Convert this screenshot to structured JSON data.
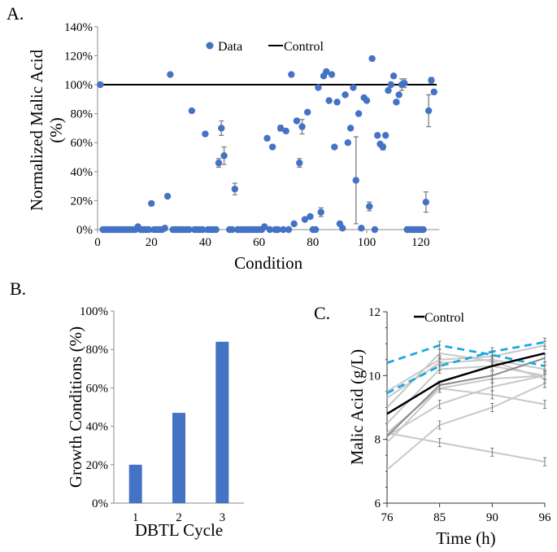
{
  "chart_data": [
    {
      "panel_label": "A.",
      "type": "scatter",
      "xlabel": "Condition",
      "ylabel": [
        "Normalized Malic Acid",
        "(%)"
      ],
      "xlim": [
        0,
        130
      ],
      "ylim": [
        0,
        140
      ],
      "xticks": [
        0,
        20,
        40,
        60,
        80,
        100,
        120
      ],
      "yticks": [
        0,
        20,
        40,
        60,
        80,
        100,
        120,
        140
      ],
      "ytick_suffix": "%",
      "legend": {
        "placement": "top-center",
        "entries": [
          "Data",
          "Control"
        ]
      },
      "colors": {
        "data": "#4472C4",
        "control": "#000000",
        "error": "#7f7f7f"
      },
      "control_value": 100,
      "series": [
        {
          "name": "Data",
          "points": [
            [
              1,
              100
            ],
            [
              2,
              0
            ],
            [
              3,
              0
            ],
            [
              4,
              0
            ],
            [
              5,
              0
            ],
            [
              6,
              0
            ],
            [
              7,
              0
            ],
            [
              8,
              0
            ],
            [
              9,
              0
            ],
            [
              10,
              0
            ],
            [
              11,
              0
            ],
            [
              12,
              0
            ],
            [
              13,
              0
            ],
            [
              14,
              0
            ],
            [
              15,
              2
            ],
            [
              16,
              0
            ],
            [
              17,
              0
            ],
            [
              18,
              0
            ],
            [
              19,
              0
            ],
            [
              20,
              18
            ],
            [
              21,
              0
            ],
            [
              22,
              0
            ],
            [
              23,
              0
            ],
            [
              24,
              0
            ],
            [
              25,
              1
            ],
            [
              26,
              23
            ],
            [
              27,
              107
            ],
            [
              28,
              0
            ],
            [
              29,
              0
            ],
            [
              30,
              0
            ],
            [
              31,
              0
            ],
            [
              32,
              0
            ],
            [
              33,
              0
            ],
            [
              34,
              0
            ],
            [
              35,
              82
            ],
            [
              36,
              0
            ],
            [
              37,
              0
            ],
            [
              38,
              0
            ],
            [
              39,
              0
            ],
            [
              40,
              66
            ],
            [
              41,
              0
            ],
            [
              42,
              0
            ],
            [
              43,
              0
            ],
            [
              44,
              0
            ],
            [
              45,
              46
            ],
            [
              46,
              70
            ],
            [
              47,
              51
            ],
            [
              49,
              0
            ],
            [
              50,
              0
            ],
            [
              51,
              28
            ],
            [
              52,
              0
            ],
            [
              53,
              0
            ],
            [
              54,
              0
            ],
            [
              55,
              0
            ],
            [
              56,
              0
            ],
            [
              57,
              0
            ],
            [
              58,
              0
            ],
            [
              59,
              0
            ],
            [
              60,
              0
            ],
            [
              61,
              0
            ],
            [
              62,
              2
            ],
            [
              63,
              63
            ],
            [
              64,
              0
            ],
            [
              65,
              57
            ],
            [
              66,
              0
            ],
            [
              67,
              0
            ],
            [
              68,
              70
            ],
            [
              69,
              0
            ],
            [
              70,
              68
            ],
            [
              71,
              0
            ],
            [
              72,
              107
            ],
            [
              73,
              4
            ],
            [
              74,
              75
            ],
            [
              75,
              46
            ],
            [
              76,
              71
            ],
            [
              77,
              7
            ],
            [
              78,
              81
            ],
            [
              79,
              9
            ],
            [
              80,
              0
            ],
            [
              81,
              0
            ],
            [
              82,
              98
            ],
            [
              83,
              12
            ],
            [
              84,
              106
            ],
            [
              85,
              109
            ],
            [
              86,
              89
            ],
            [
              87,
              107
            ],
            [
              88,
              57
            ],
            [
              89,
              88
            ],
            [
              90,
              4
            ],
            [
              91,
              1
            ],
            [
              92,
              93
            ],
            [
              93,
              60
            ],
            [
              94,
              70
            ],
            [
              95,
              98
            ],
            [
              96,
              34
            ],
            [
              97,
              80
            ],
            [
              98,
              1
            ],
            [
              99,
              91
            ],
            [
              100,
              89
            ],
            [
              101,
              16
            ],
            [
              102,
              118
            ],
            [
              103,
              0
            ],
            [
              104,
              65
            ],
            [
              105,
              59
            ],
            [
              106,
              57
            ],
            [
              107,
              65
            ],
            [
              108,
              96
            ],
            [
              109,
              100
            ],
            [
              110,
              106
            ],
            [
              111,
              88
            ],
            [
              112,
              93
            ],
            [
              113,
              100
            ],
            [
              114,
              101
            ],
            [
              115,
              0
            ],
            [
              116,
              0
            ],
            [
              117,
              0
            ],
            [
              118,
              0
            ],
            [
              119,
              0
            ],
            [
              120,
              0
            ],
            [
              121,
              0
            ],
            [
              122,
              19
            ],
            [
              123,
              82
            ],
            [
              124,
              103
            ],
            [
              125,
              95
            ]
          ]
        }
      ],
      "error_bars": [
        [
          45,
          3
        ],
        [
          46,
          5
        ],
        [
          47,
          6
        ],
        [
          51,
          4
        ],
        [
          68,
          2
        ],
        [
          72,
          1
        ],
        [
          75,
          3
        ],
        [
          76,
          5
        ],
        [
          83,
          3
        ],
        [
          96,
          30
        ],
        [
          101,
          3
        ],
        [
          106,
          2
        ],
        [
          113,
          4
        ],
        [
          114,
          3
        ],
        [
          122,
          7
        ],
        [
          123,
          11
        ],
        [
          124,
          2
        ]
      ]
    },
    {
      "panel_label": "B.",
      "type": "bar",
      "xlabel": "DBTL Cycle",
      "ylabel": "Growth Conditions (%)",
      "categories": [
        "1",
        "2",
        "3"
      ],
      "values": [
        20,
        47,
        84
      ],
      "ylim": [
        0,
        100
      ],
      "yticks": [
        0,
        20,
        40,
        60,
        80,
        100
      ],
      "ytick_suffix": "%",
      "colors": {
        "bar": "#4472C4"
      }
    },
    {
      "panel_label": "C.",
      "type": "line",
      "xlabel": "Time (h)",
      "ylabel": "Malic Acid (g/L)",
      "categories": [
        "76",
        "85",
        "90",
        "96"
      ],
      "ylim": [
        6,
        12
      ],
      "yticks": [
        6,
        8,
        10,
        12
      ],
      "legend": {
        "placement": "top-left",
        "entries": [
          "Control"
        ]
      },
      "colors": {
        "control": "#000000",
        "highlight": "#1CA8E0",
        "other": "#C8C8C8",
        "dark_other": "#8a8a8a"
      },
      "series": [
        {
          "name": "Control",
          "values": [
            8.8,
            9.8,
            10.3,
            10.7
          ],
          "style": "control"
        },
        {
          "values": [
            8.2,
            7.9,
            7.6,
            7.3
          ],
          "style": "other"
        },
        {
          "values": [
            7.05,
            8.45,
            9.0,
            9.75
          ],
          "style": "other"
        },
        {
          "values": [
            8.1,
            9.1,
            9.65,
            10.0
          ],
          "style": "other"
        },
        {
          "values": [
            7.9,
            9.6,
            9.4,
            9.1
          ],
          "style": "other"
        },
        {
          "values": [
            9.0,
            10.7,
            10.45,
            9.9
          ],
          "style": "other"
        },
        {
          "values": [
            9.5,
            10.5,
            10.6,
            10.95
          ],
          "style": "other"
        },
        {
          "values": [
            8.5,
            10.2,
            10.3,
            10.0
          ],
          "style": "other"
        },
        {
          "values": [
            9.3,
            10.4,
            10.5,
            10.2
          ],
          "style": "other"
        },
        {
          "values": [
            8.2,
            9.6,
            9.9,
            10.0
          ],
          "style": "other"
        },
        {
          "values": [
            8.1,
            9.7,
            10.0,
            10.55
          ],
          "style": "dark_other"
        },
        {
          "values": [
            10.4,
            10.95,
            10.65,
            10.3
          ],
          "style": "highlight"
        },
        {
          "values": [
            9.45,
            10.3,
            10.75,
            11.05
          ],
          "style": "highlight"
        }
      ]
    }
  ]
}
